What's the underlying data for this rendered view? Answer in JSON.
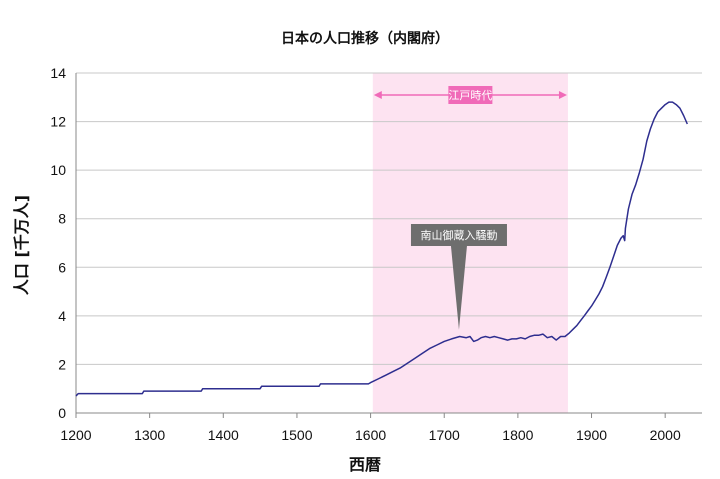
{
  "chart_data": {
    "type": "line",
    "title": "日本の人口推移（内閣府）",
    "xlabel": "西暦",
    "ylabel": "人口 [千万人]",
    "xlim": [
      1200,
      2050
    ],
    "ylim": [
      0,
      14
    ],
    "xticks": [
      1200,
      1300,
      1400,
      1500,
      1600,
      1700,
      1800,
      1900,
      2000
    ],
    "yticks": [
      0,
      2,
      4,
      6,
      8,
      10,
      12,
      14
    ],
    "grid": "horizontal",
    "legend": "none",
    "colors": {
      "line": "#2e2e8f",
      "band": "#fde3f1",
      "band_arrow": "#f06ab8",
      "callout": "#6e6e6e"
    },
    "band": {
      "label": "江戸時代",
      "from": 1603,
      "to": 1868
    },
    "annotation": {
      "label": "南山御蔵入騒動",
      "x": 1720,
      "y": 3.1
    },
    "series": [
      {
        "x": [
          1200,
          1203,
          1290,
          1292,
          1370,
          1372,
          1450,
          1452,
          1530,
          1532,
          1597,
          1600,
          1610,
          1620,
          1630,
          1640,
          1650,
          1660,
          1670,
          1680,
          1690,
          1700,
          1710,
          1721,
          1730,
          1735,
          1740,
          1745,
          1750,
          1756,
          1762,
          1768,
          1774,
          1780,
          1786,
          1792,
          1798,
          1804,
          1810,
          1816,
          1822,
          1828,
          1834,
          1840,
          1846,
          1852,
          1858,
          1864,
          1870,
          1875,
          1880,
          1885,
          1890,
          1895,
          1900,
          1905,
          1910,
          1915,
          1920,
          1925,
          1930,
          1935,
          1940,
          1943,
          1944,
          1945,
          1946,
          1950,
          1955,
          1960,
          1965,
          1970,
          1975,
          1980,
          1985,
          1990,
          1995,
          2000,
          2005,
          2010,
          2015,
          2020,
          2025,
          2030
        ],
        "values": [
          0.7,
          0.8,
          0.8,
          0.9,
          0.9,
          1.0,
          1.0,
          1.1,
          1.1,
          1.2,
          1.2,
          1.25,
          1.4,
          1.55,
          1.7,
          1.85,
          2.05,
          2.25,
          2.45,
          2.65,
          2.8,
          2.95,
          3.05,
          3.15,
          3.1,
          3.15,
          2.95,
          3.0,
          3.1,
          3.15,
          3.1,
          3.15,
          3.1,
          3.05,
          3.0,
          3.05,
          3.05,
          3.1,
          3.05,
          3.15,
          3.2,
          3.2,
          3.25,
          3.1,
          3.15,
          3.0,
          3.15,
          3.15,
          3.3,
          3.45,
          3.6,
          3.8,
          4.0,
          4.2,
          4.4,
          4.65,
          4.9,
          5.2,
          5.6,
          6.0,
          6.45,
          6.9,
          7.2,
          7.3,
          7.2,
          7.1,
          7.6,
          8.4,
          9.0,
          9.4,
          9.9,
          10.45,
          11.2,
          11.7,
          12.1,
          12.4,
          12.55,
          12.7,
          12.8,
          12.8,
          12.7,
          12.55,
          12.25,
          11.9
        ]
      }
    ]
  }
}
